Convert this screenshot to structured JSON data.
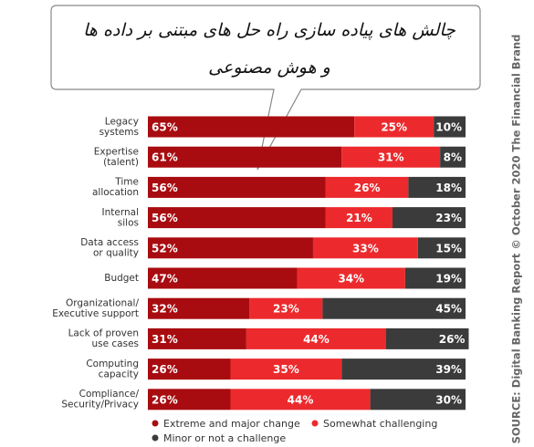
{
  "chart_data": {
    "type": "stacked-bar",
    "title": [
      "چالش های پیاده سازی راه حل های  مبتنی بر داده ها",
      "و هوش مصنوعی"
    ],
    "source": "SOURCE: Digital Banking Report © October 2020 The Financial Brand",
    "categories": [
      [
        "Legacy",
        "systems"
      ],
      [
        "Expertise",
        "(talent)"
      ],
      [
        "Time",
        "allocation"
      ],
      [
        "Internal",
        "silos"
      ],
      [
        "Data access",
        "or quality"
      ],
      [
        "Budget"
      ],
      [
        "Organizational/",
        "Executive support"
      ],
      [
        "Lack of proven",
        "use cases"
      ],
      [
        "Computing",
        "capacity"
      ],
      [
        "Compliance/",
        "Security/Privacy"
      ]
    ],
    "xlim": [
      0,
      100
    ],
    "series": [
      {
        "name": "Extreme and major change",
        "color": "#a80c10",
        "values": [
          65,
          61,
          56,
          56,
          52,
          47,
          32,
          31,
          26,
          26
        ],
        "value_labels": [
          "65%",
          "61%",
          "56%",
          "56%",
          "52%",
          "47%",
          "32%",
          "31%",
          "26%",
          "26%"
        ]
      },
      {
        "name": "Somewhat challenging",
        "color": "#ec2a2d",
        "values": [
          25,
          31,
          26,
          21,
          33,
          34,
          23,
          44,
          35,
          44
        ],
        "value_labels": [
          "25%",
          "31%",
          "26%",
          "21%",
          "33%",
          "34%",
          "23%",
          "44%",
          "35%",
          "44%"
        ]
      },
      {
        "name": "Minor or not a challenge",
        "color": "#3b3b3b",
        "values": [
          10,
          8,
          18,
          23,
          15,
          19,
          45,
          26,
          39,
          30
        ],
        "value_labels": [
          "10%",
          "8%",
          "18%",
          "23%",
          "15%",
          "19%",
          "45%",
          "26%",
          "39%",
          "30%"
        ]
      }
    ]
  }
}
